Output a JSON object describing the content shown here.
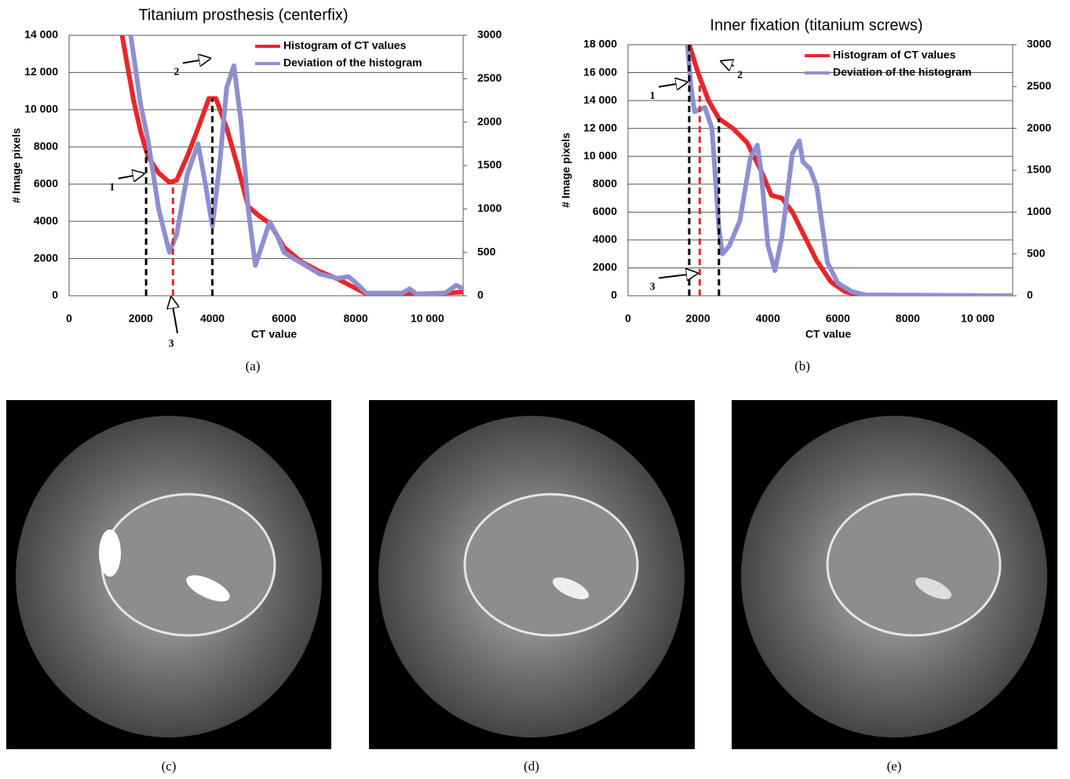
{
  "chart_data": [
    {
      "type": "line",
      "title": "Titanium prosthesis (centerfix)",
      "x_label": "CT value",
      "y_label": "# Image pixels",
      "xlim": [
        0,
        11000
      ],
      "xticks": [
        0,
        2000,
        4000,
        6000,
        8000,
        {
          "value": 10000,
          "label": "10 000"
        }
      ],
      "ylim": [
        0,
        14000
      ],
      "yticks": [
        0,
        2000,
        4000,
        6000,
        8000,
        {
          "value": 10000,
          "label": "10 000"
        },
        {
          "value": 12000,
          "label": "12 000"
        },
        {
          "value": 14000,
          "label": "14 000"
        }
      ],
      "y2lim": [
        0,
        3000
      ],
      "y2ticks": [
        0,
        500,
        1000,
        1500,
        2000,
        2500,
        3000
      ],
      "grid": true,
      "legend": "upper right",
      "series": [
        {
          "name": "Histogram of CT values",
          "color": "#e8262a",
          "x": [
            1480,
            1800,
            2000,
            2200,
            2500,
            2800,
            3000,
            3300,
            3600,
            3900,
            4100,
            4400,
            4700,
            5000,
            5300,
            5600,
            6000,
            6500,
            7000,
            7500,
            8000,
            8300,
            9000,
            10000,
            11000
          ],
          "values": [
            14000,
            10500,
            8800,
            7500,
            6600,
            6100,
            6200,
            7500,
            9000,
            10600,
            10600,
            9000,
            7000,
            4800,
            4300,
            3900,
            2600,
            1800,
            1300,
            900,
            400,
            100,
            100,
            100,
            200
          ]
        },
        {
          "name": "Deviation of the histogram",
          "color": "#8e8fd0",
          "axis": "y2",
          "x": [
            1720,
            2000,
            2200,
            2500,
            2800,
            3000,
            3300,
            3600,
            3800,
            4000,
            4200,
            4400,
            4600,
            4800,
            5000,
            5200,
            5400,
            5600,
            5800,
            6000,
            6300,
            6600,
            7000,
            7500,
            7800,
            8000,
            8300,
            9000,
            9300,
            9500,
            9700,
            10500,
            10800,
            11000
          ],
          "values": [
            3000,
            2200,
            1800,
            1000,
            500,
            700,
            1400,
            1750,
            1300,
            800,
            1500,
            2400,
            2650,
            2000,
            1000,
            350,
            600,
            850,
            700,
            500,
            420,
            350,
            250,
            200,
            220,
            150,
            30,
            30,
            30,
            80,
            20,
            30,
            120,
            80
          ]
        }
      ],
      "markers": [
        {
          "x": 2150,
          "y": 7800,
          "color": "#000000"
        },
        {
          "x": 4000,
          "y": 10600,
          "color": "#000000"
        },
        {
          "x": 2900,
          "y": 6100,
          "color": "#e8262a"
        }
      ],
      "annotations": [
        {
          "text": "1",
          "x": 1200,
          "y": 5800
        },
        {
          "text": "2",
          "x": 3000,
          "y": 12000
        },
        {
          "text": "3",
          "x": 2850,
          "y": -2600
        }
      ]
    },
    {
      "type": "line",
      "title": "Inner fixation (titanium screws)",
      "x_label": "CT value",
      "y_label": "# Image pixels",
      "xlim": [
        0,
        11000
      ],
      "xticks": [
        0,
        2000,
        4000,
        6000,
        8000,
        {
          "value": 10000,
          "label": "10 000"
        }
      ],
      "ylim": [
        0,
        18000
      ],
      "yticks": [
        0,
        2000,
        4000,
        6000,
        8000,
        {
          "value": 10000,
          "label": "10 000"
        },
        {
          "value": 12000,
          "label": "12 000"
        },
        {
          "value": 14000,
          "label": "14 000"
        },
        {
          "value": 16000,
          "label": "16 000"
        },
        {
          "value": 18000,
          "label": "18 000"
        }
      ],
      "y2lim": [
        0,
        3000
      ],
      "y2ticks": [
        0,
        500,
        1000,
        1500,
        2000,
        2500,
        3000
      ],
      "grid": true,
      "legend": "upper right",
      "series": [
        {
          "name": "Histogram of CT values",
          "color": "#e8262a",
          "x": [
            1750,
            2000,
            2300,
            2600,
            3000,
            3400,
            3800,
            4100,
            4400,
            4700,
            5000,
            5400,
            5800,
            6200,
            6600,
            7000,
            11000
          ],
          "values": [
            18000,
            16000,
            14000,
            12700,
            12000,
            11000,
            9000,
            7200,
            7000,
            6000,
            4500,
            2500,
            1000,
            300,
            50,
            0,
            0
          ]
        },
        {
          "name": "Deviation of the histogram",
          "color": "#8e8fd0",
          "axis": "y2",
          "x": [
            1700,
            1800,
            1900,
            2200,
            2400,
            2600,
            2700,
            2900,
            3200,
            3500,
            3700,
            3800,
            4000,
            4200,
            4400,
            4700,
            4900,
            5000,
            5200,
            5400,
            5700,
            6000,
            6400,
            6800,
            11000
          ],
          "values": [
            3000,
            2500,
            2200,
            2250,
            2000,
            800,
            500,
            600,
            900,
            1650,
            1800,
            1500,
            600,
            300,
            700,
            1700,
            1850,
            1600,
            1520,
            1300,
            400,
            150,
            50,
            10,
            0
          ]
        }
      ],
      "markers": [
        {
          "x": 1750,
          "y": 18000,
          "color": "#000000"
        },
        {
          "x": 2600,
          "y": 12700,
          "color": "#000000"
        },
        {
          "x": 2050,
          "y": 16000,
          "color": "#e8262a"
        }
      ],
      "annotations": [
        {
          "text": "1",
          "x": 700,
          "y": 14300
        },
        {
          "text": "2",
          "x": 3200,
          "y": 15800
        },
        {
          "text": "3",
          "x": 700,
          "y": 600
        }
      ]
    }
  ],
  "captions": [
    "(a)",
    "(b)",
    "(c)",
    "(d)",
    "(e)"
  ]
}
